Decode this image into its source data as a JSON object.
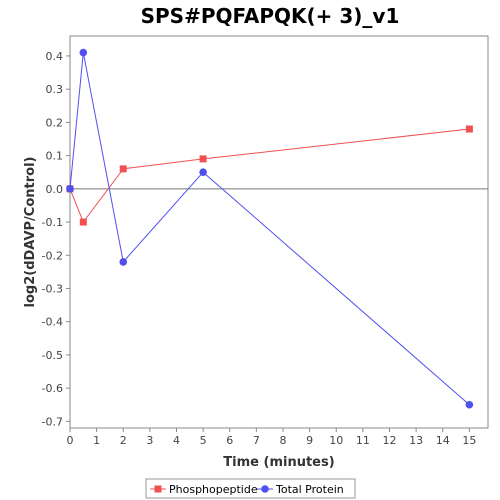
{
  "chart_data": {
    "type": "line",
    "title": "SPS#PQFAPQK(+ 3)_v1",
    "xlabel": "Time (minutes)",
    "ylabel": "log2(dDAVP/Control)",
    "xlim": [
      0,
      15.7
    ],
    "ylim": [
      -0.72,
      0.46
    ],
    "x_ticks": [
      0,
      1,
      2,
      3,
      4,
      5,
      6,
      7,
      8,
      9,
      10,
      11,
      12,
      13,
      14,
      15
    ],
    "y_ticks": [
      0.4,
      0.3,
      0.2,
      0.1,
      0.0,
      -0.1,
      -0.2,
      -0.3,
      -0.4,
      -0.5,
      -0.6,
      -0.7
    ],
    "x_tick_labels": [
      "0",
      "1",
      "2",
      "3",
      "4",
      "5",
      "6",
      "7",
      "8",
      "9",
      "10",
      "11",
      "12",
      "13",
      "14",
      "15"
    ],
    "y_tick_labels": [
      "0.4",
      "0.3",
      "0.2",
      "0.1",
      "0.0",
      "-0.1",
      "-0.2",
      "-0.3",
      "-0.4",
      "-0.5",
      "-0.6",
      "-0.7"
    ],
    "zero_line": true,
    "grid": false,
    "legend_position": "bottom",
    "series": [
      {
        "name": "Phosphopeptide",
        "color": "#f05050",
        "marker": "square",
        "x": [
          0,
          0.5,
          2,
          5,
          15
        ],
        "y": [
          0.0,
          -0.1,
          0.06,
          0.09,
          0.18
        ]
      },
      {
        "name": "Total Protein",
        "color": "#5050f0",
        "marker": "circle",
        "x": [
          0,
          0.5,
          2,
          5,
          15
        ],
        "y": [
          0.0,
          0.41,
          -0.22,
          0.05,
          -0.65
        ]
      }
    ]
  }
}
